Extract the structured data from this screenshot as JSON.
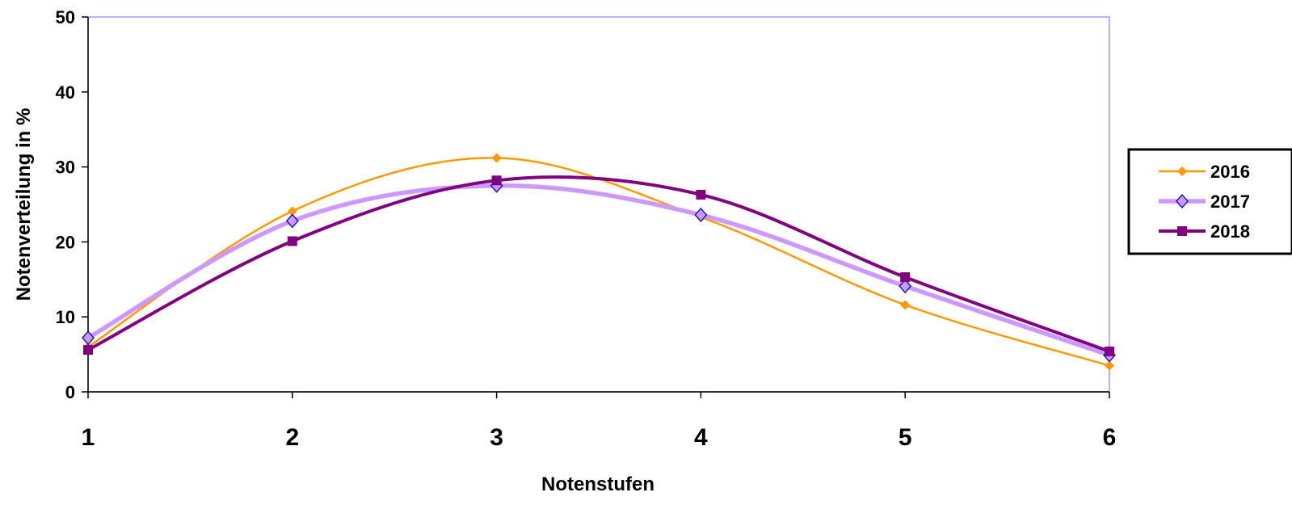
{
  "chart_data": {
    "type": "line",
    "title": "",
    "xlabel": "Notenstufen",
    "ylabel": "Notenverteilung in %",
    "categories": [
      "1",
      "2",
      "3",
      "4",
      "5",
      "6"
    ],
    "x": [
      1,
      2,
      3,
      4,
      5,
      6
    ],
    "ylim": [
      0,
      50
    ],
    "yticks": [
      "0",
      "10",
      "20",
      "30",
      "40",
      "50"
    ],
    "smooth": true,
    "grid": false,
    "legend_position": "right",
    "series": [
      {
        "name": "2016",
        "values": [
          6.0,
          24.1,
          31.2,
          23.3,
          11.6,
          3.5
        ],
        "color": "#FF9900",
        "marker": "diamond-filled",
        "line_width": "thin"
      },
      {
        "name": "2017",
        "values": [
          7.2,
          22.8,
          27.5,
          23.6,
          14.1,
          4.9
        ],
        "color": "#CC99FF",
        "marker": "diamond-open",
        "line_width": "thick"
      },
      {
        "name": "2018",
        "values": [
          5.6,
          20.1,
          28.2,
          26.3,
          15.3,
          5.4
        ],
        "color": "#800080",
        "marker": "square",
        "line_width": "medium"
      }
    ],
    "plot_border_color": "#9999FF"
  }
}
